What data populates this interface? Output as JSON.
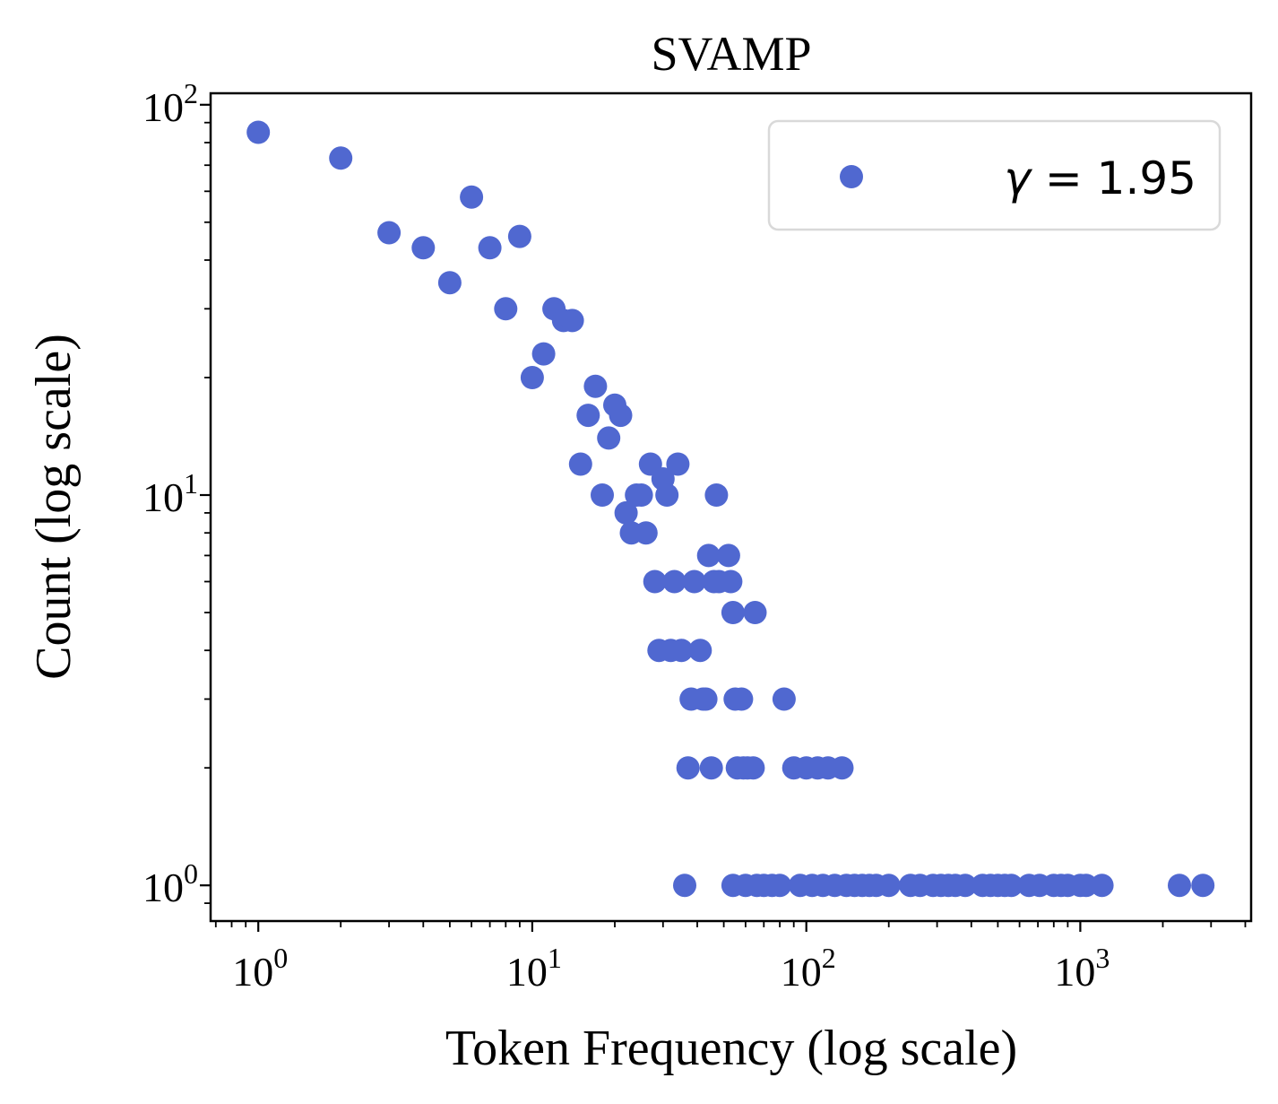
{
  "colors": {
    "marker": "#5068d0",
    "axis": "#000000",
    "legend_border": "#d9d9d9"
  },
  "chart_data": {
    "type": "scatter",
    "title": "SVAMP",
    "xlabel": "Token Frequency (log scale)",
    "ylabel": "Count (log scale)",
    "xscale": "log",
    "yscale": "log",
    "xlim": [
      0.67,
      4200
    ],
    "ylim": [
      0.81,
      107
    ],
    "grid": false,
    "legend_position": "top-right",
    "x_ticks": [
      {
        "value": 1,
        "base": "10",
        "exp": "0"
      },
      {
        "value": 10,
        "base": "10",
        "exp": "1"
      },
      {
        "value": 100,
        "base": "10",
        "exp": "2"
      },
      {
        "value": 1000,
        "base": "10",
        "exp": "3"
      }
    ],
    "y_ticks": [
      {
        "value": 1,
        "base": "10",
        "exp": "0"
      },
      {
        "value": 10,
        "base": "10",
        "exp": "1"
      },
      {
        "value": 100,
        "base": "10",
        "exp": "2"
      }
    ],
    "series": [
      {
        "name": "γ = 1.95",
        "name_symbol": "γ",
        "name_rest": " = 1.95",
        "points": [
          [
            1,
            85
          ],
          [
            2,
            73
          ],
          [
            3,
            47
          ],
          [
            4,
            43
          ],
          [
            5,
            35
          ],
          [
            6,
            58
          ],
          [
            7,
            43
          ],
          [
            8,
            30
          ],
          [
            9,
            46
          ],
          [
            10,
            20
          ],
          [
            11,
            23
          ],
          [
            12,
            30
          ],
          [
            13,
            28
          ],
          [
            14,
            28
          ],
          [
            15,
            12
          ],
          [
            16,
            16
          ],
          [
            17,
            19
          ],
          [
            18,
            10
          ],
          [
            19,
            14
          ],
          [
            20,
            17
          ],
          [
            21,
            16
          ],
          [
            22,
            9
          ],
          [
            23,
            8
          ],
          [
            24,
            10
          ],
          [
            25,
            10
          ],
          [
            26,
            8
          ],
          [
            27,
            12
          ],
          [
            28,
            6
          ],
          [
            29,
            4
          ],
          [
            30,
            11
          ],
          [
            31,
            10
          ],
          [
            32,
            4
          ],
          [
            33,
            6
          ],
          [
            34,
            12
          ],
          [
            35,
            4
          ],
          [
            36,
            1
          ],
          [
            37,
            2
          ],
          [
            38,
            3
          ],
          [
            39,
            6
          ],
          [
            41,
            4
          ],
          [
            42,
            3
          ],
          [
            43,
            3
          ],
          [
            44,
            7
          ],
          [
            45,
            2
          ],
          [
            46,
            6
          ],
          [
            47,
            10
          ],
          [
            48,
            6
          ],
          [
            52,
            7
          ],
          [
            53,
            6
          ],
          [
            54,
            5
          ],
          [
            55,
            3
          ],
          [
            56,
            2
          ],
          [
            58,
            3
          ],
          [
            59,
            2
          ],
          [
            61,
            2
          ],
          [
            64,
            2
          ],
          [
            65,
            5
          ],
          [
            54,
            1
          ],
          [
            60,
            1
          ],
          [
            66,
            1
          ],
          [
            70,
            1
          ],
          [
            75,
            1
          ],
          [
            80,
            1
          ],
          [
            83,
            3
          ],
          [
            90,
            2
          ],
          [
            95,
            1
          ],
          [
            100,
            2
          ],
          [
            105,
            1
          ],
          [
            110,
            2
          ],
          [
            115,
            1
          ],
          [
            120,
            2
          ],
          [
            127,
            1
          ],
          [
            135,
            2
          ],
          [
            140,
            1
          ],
          [
            150,
            1
          ],
          [
            160,
            1
          ],
          [
            170,
            1
          ],
          [
            180,
            1
          ],
          [
            200,
            1
          ],
          [
            240,
            1
          ],
          [
            260,
            1
          ],
          [
            290,
            1
          ],
          [
            310,
            1
          ],
          [
            330,
            1
          ],
          [
            350,
            1
          ],
          [
            380,
            1
          ],
          [
            440,
            1
          ],
          [
            470,
            1
          ],
          [
            500,
            1
          ],
          [
            530,
            1
          ],
          [
            560,
            1
          ],
          [
            650,
            1
          ],
          [
            710,
            1
          ],
          [
            800,
            1
          ],
          [
            850,
            1
          ],
          [
            900,
            1
          ],
          [
            1000,
            1
          ],
          [
            1050,
            1
          ],
          [
            1200,
            1
          ],
          [
            2300,
            1
          ],
          [
            2800,
            1
          ]
        ]
      }
    ]
  }
}
